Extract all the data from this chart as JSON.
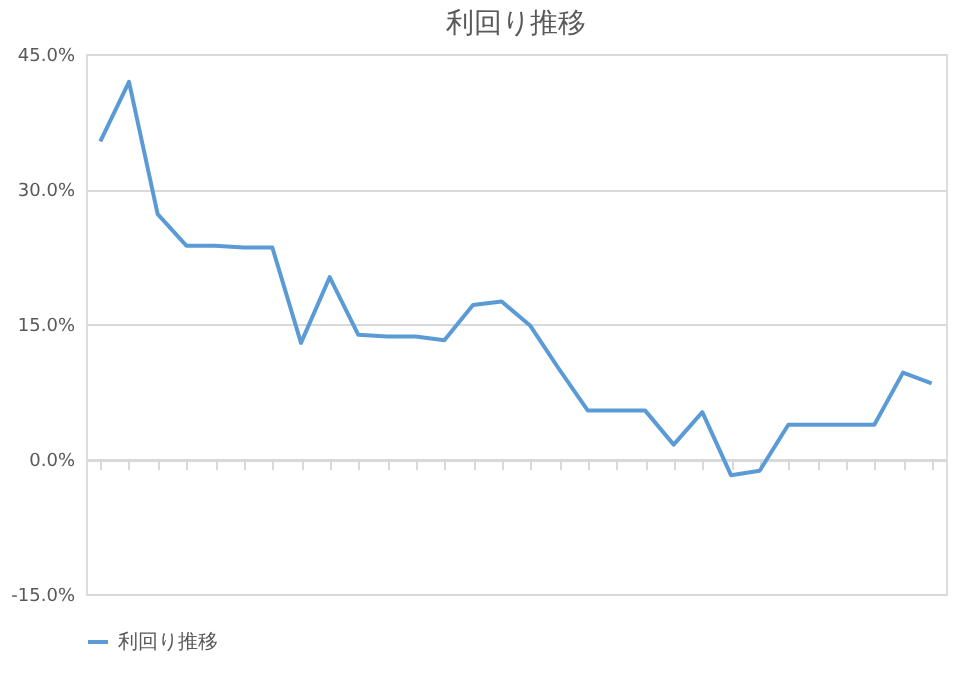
{
  "chart_data": {
    "type": "line",
    "title": "利回り推移",
    "categories": [
      null,
      null,
      null,
      null,
      null,
      null,
      null,
      null,
      null,
      null,
      null,
      null,
      null,
      null,
      null,
      null,
      null,
      null,
      null,
      null,
      null,
      null,
      null,
      null,
      null,
      null,
      null,
      null,
      null,
      null
    ],
    "series": [
      {
        "name": "利回り推移",
        "color": "#5b9bd5",
        "values": [
          35.3,
          41.9,
          27.2,
          23.7,
          23.7,
          23.5,
          23.5,
          12.9,
          20.2,
          13.8,
          13.6,
          13.6,
          13.2,
          17.1,
          17.5,
          14.8,
          10.0,
          5.4,
          5.4,
          5.4,
          1.6,
          5.2,
          -1.8,
          -1.3,
          3.8,
          3.8,
          3.8,
          3.8,
          9.6,
          8.4
        ]
      }
    ],
    "ylim": [
      -15,
      45
    ],
    "yticks": [
      {
        "value": -15,
        "label": "-15.0%"
      },
      {
        "value": 0,
        "label": "0.0%"
      },
      {
        "value": 15,
        "label": "15.0%"
      },
      {
        "value": 30,
        "label": "30.0%"
      },
      {
        "value": 45,
        "label": "45.0%"
      }
    ],
    "grid": "y",
    "legend": "bottom",
    "marker": "none",
    "line_style": "solid"
  }
}
